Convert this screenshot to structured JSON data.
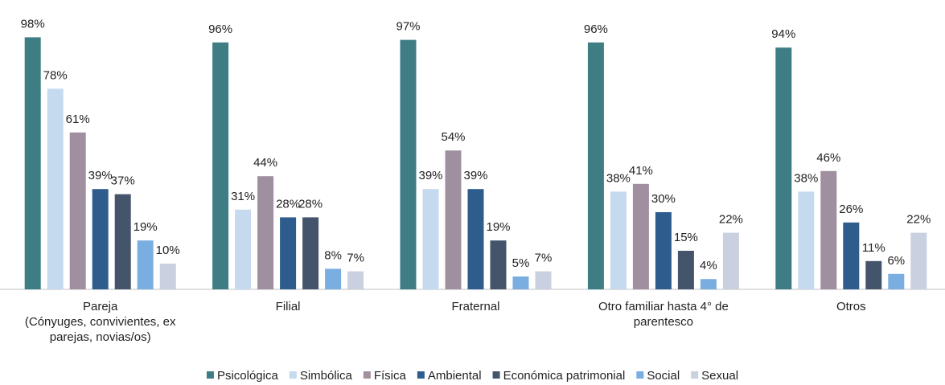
{
  "chart_data": {
    "type": "bar",
    "categories": [
      "Pareja\n(Cónyuges, convivientes, ex\nparejas, novias/os)",
      "Filial",
      "Fraternal",
      "Otro familiar hasta 4° de\nparentesco",
      "Otros"
    ],
    "series": [
      {
        "name": "Psicológica",
        "color": "#3f7d85",
        "values": [
          98,
          96,
          97,
          96,
          94
        ]
      },
      {
        "name": "Simbólica",
        "color": "#c5d9ef",
        "values": [
          78,
          31,
          39,
          38,
          38
        ]
      },
      {
        "name": "Física",
        "color": "#a0909f",
        "values": [
          61,
          44,
          54,
          41,
          46
        ]
      },
      {
        "name": "Ambiental",
        "color": "#2e5d8d",
        "values": [
          39,
          28,
          39,
          30,
          26
        ]
      },
      {
        "name": "Económica patrimonial",
        "color": "#44546a",
        "values": [
          37,
          28,
          19,
          15,
          11
        ]
      },
      {
        "name": "Social",
        "color": "#7aaee0",
        "values": [
          19,
          8,
          5,
          4,
          6
        ]
      },
      {
        "name": "Sexual",
        "color": "#c9d0df",
        "values": [
          10,
          7,
          7,
          22,
          22
        ]
      }
    ],
    "value_labels": [
      [
        "98%",
        "96%",
        "97%",
        "96%",
        "94%"
      ],
      [
        "78%",
        "31%",
        "39%",
        "38%",
        "38%"
      ],
      [
        "61%",
        "44%",
        "54%",
        "41%",
        "46%"
      ],
      [
        "39%",
        "28%",
        "39%",
        "30%",
        "26%"
      ],
      [
        "37%",
        "28%",
        "19%",
        "15%",
        "11%"
      ],
      [
        "19%",
        "8%",
        "5%",
        "4%",
        "6%"
      ],
      [
        "10%",
        "7%",
        "7%",
        "22%",
        "22%"
      ]
    ],
    "ylim": [
      0,
      100
    ],
    "legend": "bottom"
  }
}
